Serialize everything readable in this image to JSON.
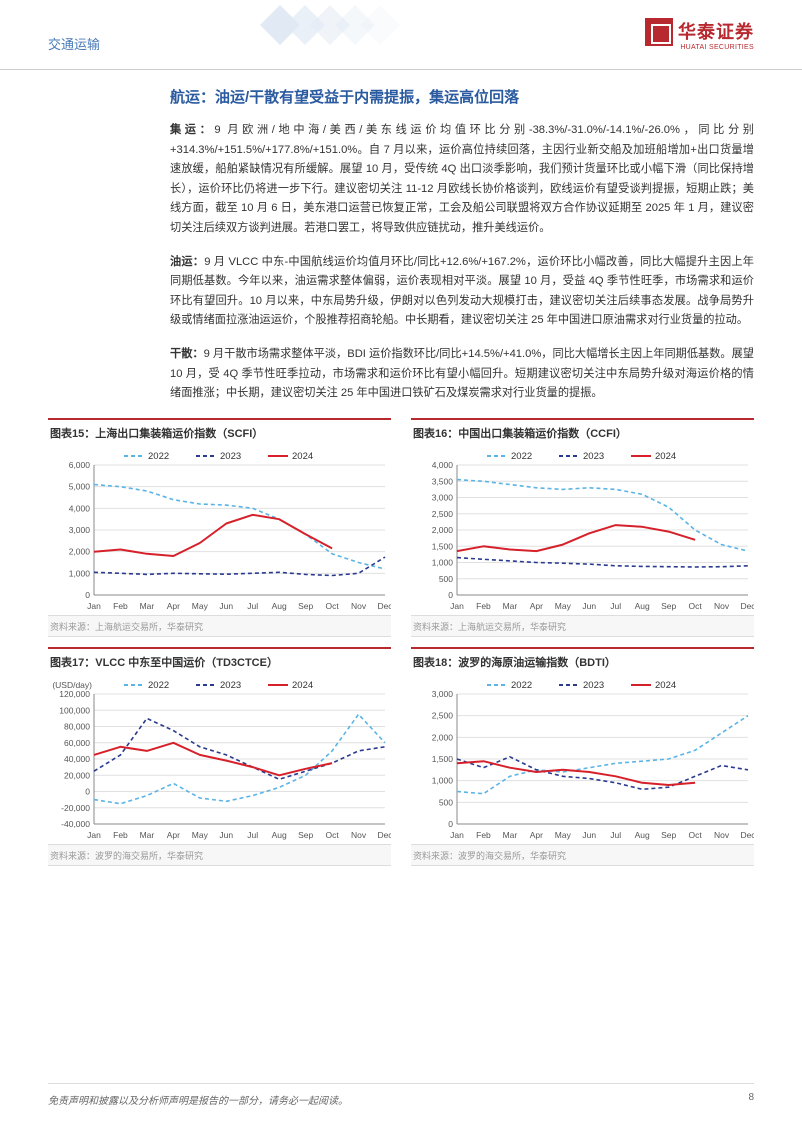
{
  "header": {
    "category": "交通运输",
    "logo_cn": "华泰证券",
    "logo_en": "HUATAI SECURITIES"
  },
  "section_title": "航运：油运/干散有望受益于内需提振，集运高位回落",
  "paragraphs": {
    "p1_lead": "集运：",
    "p1_body": "9 月欧洲/地中海/美西/美东线运价均值环比分别-38.3%/-31.0%/-14.1%/-26.0%，同比分别+314.3%/+151.5%/+177.8%/+151.0%。自 7 月以来，运价高位持续回落，主因行业新交船及加班船增加+出口货量增速放缓，船舶紧缺情况有所缓解。展望 10 月，受传统 4Q 出口淡季影响，我们预计货量环比或小幅下滑（同比保持增长），运价环比仍将进一步下行。建议密切关注 11-12 月欧线长协价格谈判，欧线运价有望受谈判提振，短期止跌；美线方面，截至 10 月 6 日，美东港口运营已恢复正常，工会及船公司联盟将双方合作协议延期至 2025 年 1 月，建议密切关注后续双方谈判进展。若港口罢工，将导致供应链扰动，推升美线运价。",
    "p2_lead": "油运：",
    "p2_body": "9 月 VLCC 中东-中国航线运价均值月环比/同比+12.6%/+167.2%，运价环比小幅改善，同比大幅提升主因上年同期低基数。今年以来，油运需求整体偏弱，运价表现相对平淡。展望 10 月，受益 4Q 季节性旺季，市场需求和运价环比有望回升。10 月以来，中东局势升级，伊朗对以色列发动大规模打击，建议密切关注后续事态发展。战争局势升级或情绪面拉涨油运运价，个股推荐招商轮船。中长期看，建议密切关注 25 年中国进口原油需求对行业货量的拉动。",
    "p3_lead": "干散：",
    "p3_body": "9 月干散市场需求整体平淡，BDI 运价指数环比/同比+14.5%/+41.0%，同比大幅增长主因上年同期低基数。展望 10 月，受 4Q 季节性旺季拉动，市场需求和运价环比有望小幅回升。短期建议密切关注中东局势升级对海运价格的情绪面推涨；中长期，建议密切关注 25 年中国进口铁矿石及煤炭需求对行业货量的提振。"
  },
  "legend": {
    "s2022": "2022",
    "s2023": "2023",
    "s2024": "2024",
    "c2022": "#5ab4e6",
    "c2023": "#2a3a8f",
    "c2024": "#d6202a"
  },
  "chart15": {
    "title": "图表15：上海出口集装箱运价指数（SCFI）",
    "source": "资料来源：上海航运交易所，华泰研究",
    "type": "line",
    "xlabels": [
      "Jan",
      "Feb",
      "Mar",
      "Apr",
      "May",
      "Jun",
      "Jul",
      "Aug",
      "Sep",
      "Oct",
      "Nov",
      "Dec"
    ],
    "ylim": [
      0,
      6000
    ],
    "ytick_step": 1000,
    "series": {
      "2022": [
        5100,
        5000,
        4800,
        4400,
        4200,
        4150,
        4000,
        3500,
        2800,
        1900,
        1500,
        1200
      ],
      "2023": [
        1050,
        1000,
        950,
        1000,
        980,
        960,
        1000,
        1050,
        950,
        900,
        1000,
        1750
      ],
      "2024": [
        2000,
        2100,
        1900,
        1800,
        2400,
        3300,
        3700,
        3500,
        2800,
        2150
      ]
    }
  },
  "chart16": {
    "title": "图表16：中国出口集装箱运价指数（CCFI）",
    "source": "资料来源：上海航运交易所，华泰研究",
    "type": "line",
    "xlabels": [
      "Jan",
      "Feb",
      "Mar",
      "Apr",
      "May",
      "Jun",
      "Jul",
      "Aug",
      "Sep",
      "Oct",
      "Nov",
      "Dec"
    ],
    "ylim": [
      0,
      4000
    ],
    "ytick_step": 500,
    "series": {
      "2022": [
        3550,
        3500,
        3400,
        3300,
        3250,
        3300,
        3250,
        3100,
        2700,
        2000,
        1550,
        1350
      ],
      "2023": [
        1150,
        1100,
        1050,
        1000,
        980,
        950,
        900,
        880,
        870,
        860,
        870,
        900
      ],
      "2024": [
        1350,
        1500,
        1400,
        1350,
        1550,
        1900,
        2150,
        2100,
        1950,
        1700
      ]
    }
  },
  "chart17": {
    "title": "图表17：VLCC 中东至中国运价（TD3CTCE）",
    "source": "资料来源：波罗的海交易所，华泰研究",
    "type": "line",
    "ylabel": "(USD/day)",
    "xlabels": [
      "Jan",
      "Feb",
      "Mar",
      "Apr",
      "May",
      "Jun",
      "Jul",
      "Aug",
      "Sep",
      "Oct",
      "Nov",
      "Dec"
    ],
    "ylim": [
      -40000,
      120000
    ],
    "ytick_step": 20000,
    "series": {
      "2022": [
        -10000,
        -15000,
        -5000,
        10000,
        -8000,
        -12000,
        -5000,
        5000,
        20000,
        50000,
        95000,
        60000
      ],
      "2023": [
        25000,
        45000,
        90000,
        75000,
        55000,
        45000,
        30000,
        15000,
        25000,
        35000,
        50000,
        55000
      ],
      "2024": [
        45000,
        55000,
        50000,
        60000,
        45000,
        38000,
        30000,
        20000,
        28000,
        35000
      ]
    }
  },
  "chart18": {
    "title": "图表18：波罗的海原油运输指数（BDTI）",
    "source": "资料来源：波罗的海交易所，华泰研究",
    "type": "line",
    "xlabels": [
      "Jan",
      "Feb",
      "Mar",
      "Apr",
      "May",
      "Jun",
      "Jul",
      "Aug",
      "Sep",
      "Oct",
      "Nov",
      "Dec"
    ],
    "ylim": [
      0,
      3000
    ],
    "ytick_step": 500,
    "series": {
      "2022": [
        750,
        700,
        1100,
        1250,
        1200,
        1300,
        1400,
        1450,
        1500,
        1700,
        2100,
        2500
      ],
      "2023": [
        1500,
        1300,
        1550,
        1250,
        1100,
        1050,
        950,
        800,
        850,
        1100,
        1350,
        1250
      ],
      "2024": [
        1400,
        1450,
        1300,
        1200,
        1250,
        1200,
        1100,
        950,
        900,
        950
      ]
    }
  },
  "footer": {
    "disclaimer": "免责声明和披露以及分析师声明是报告的一部分，请务必一起阅读。",
    "page": "8"
  },
  "style": {
    "grid_color": "#e0e0e0",
    "axis_color": "#888888",
    "tick_font_size": 8.5,
    "chart_bg": "#ffffff"
  }
}
